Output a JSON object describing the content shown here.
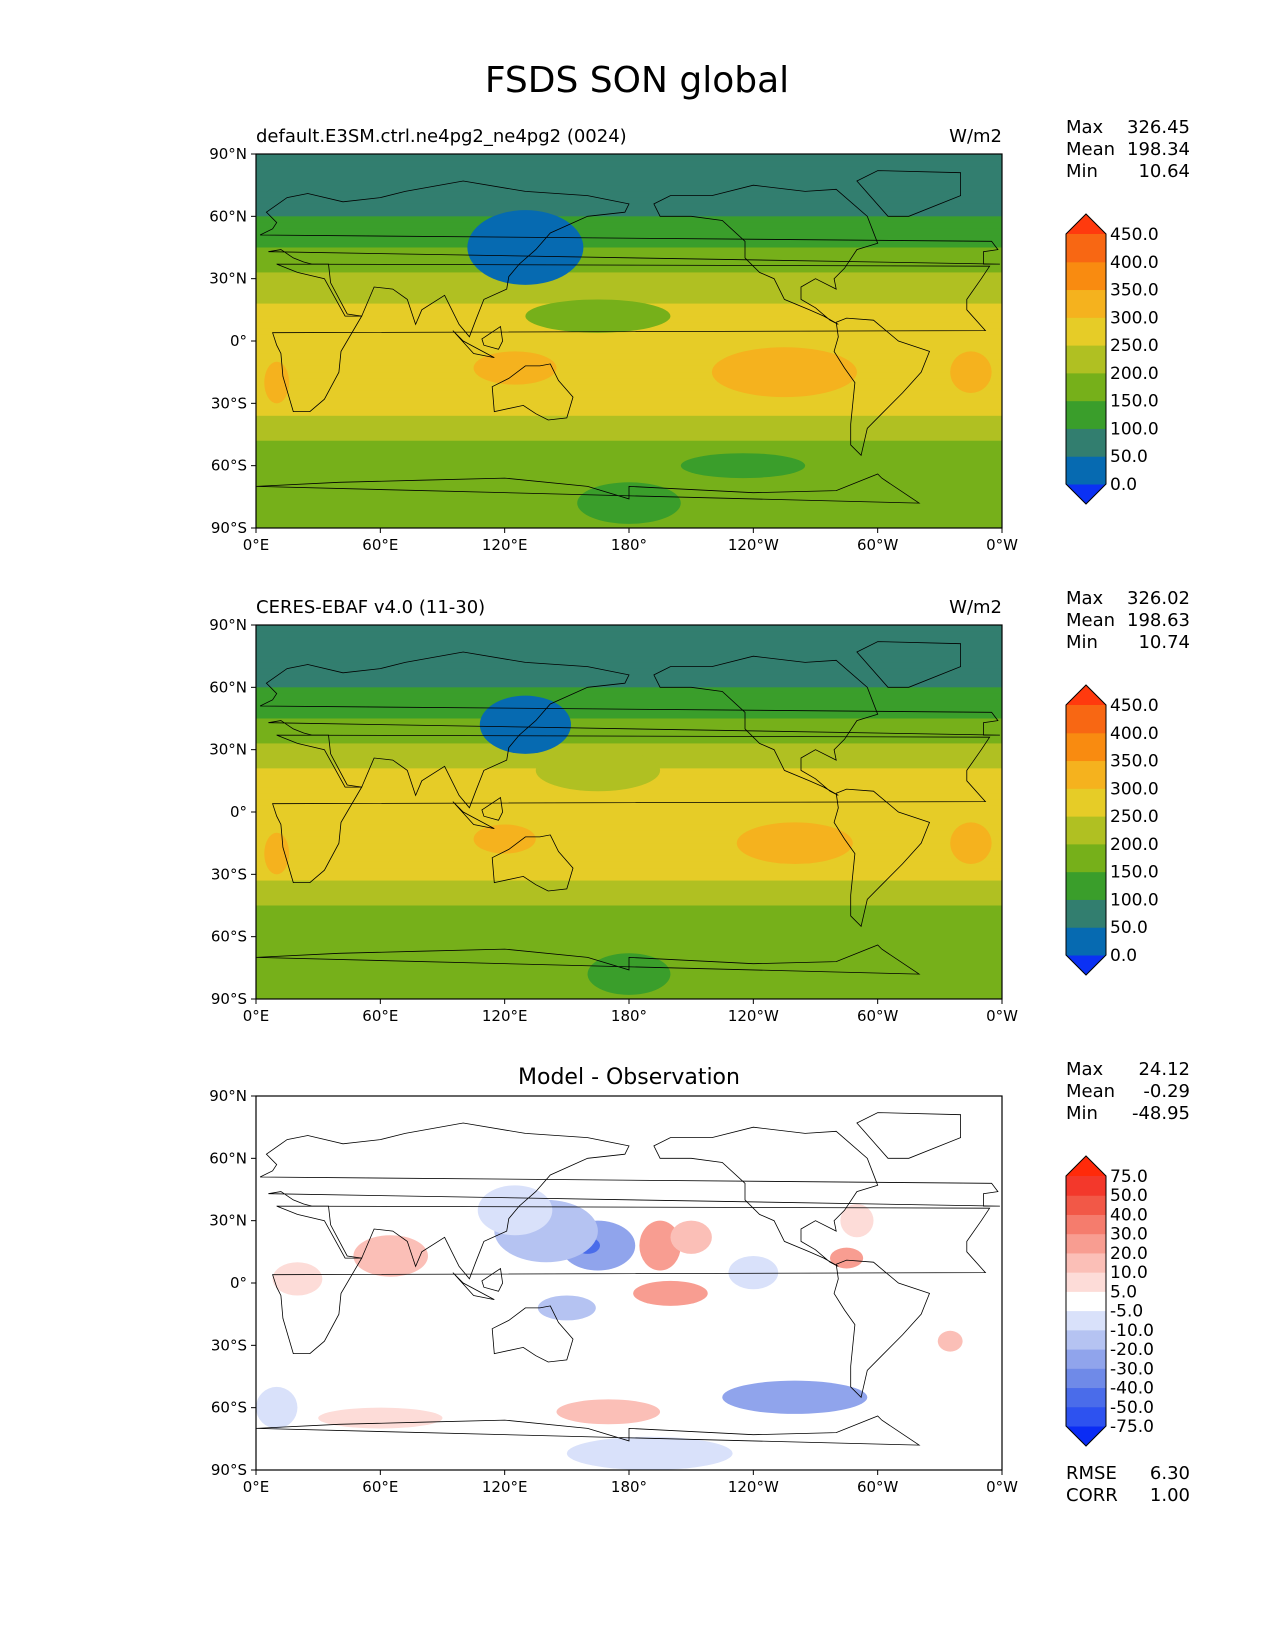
{
  "figure": {
    "title": "FSDS SON global"
  },
  "axes": {
    "lat_ticks": [
      "90°N",
      "60°N",
      "30°N",
      "0°",
      "30°S",
      "60°S",
      "90°S"
    ],
    "lon_ticks": [
      "0°E",
      "60°E",
      "120°E",
      "180°",
      "120°W",
      "60°W",
      "0°W"
    ]
  },
  "chart_data": [
    {
      "type": "heatmap",
      "title": "",
      "left_label": "default.E3SM.ctrl.ne4pg2_ne4pg2 (0024)",
      "right_label": "W/m2",
      "stats": [
        {
          "label": "Max",
          "value": "326.45"
        },
        {
          "label": "Mean",
          "value": "198.34"
        },
        {
          "label": "Min",
          "value": "10.64"
        }
      ],
      "levels": [
        "0.0",
        "50.0",
        "100.0",
        "150.0",
        "200.0",
        "250.0",
        "300.0",
        "350.0",
        "400.0",
        "450.0"
      ],
      "colors": [
        "#0b31f4",
        "#066ab1",
        "#327e6f",
        "#3a9e2b",
        "#76b01a",
        "#b0c022",
        "#e6cc27",
        "#f5b21e",
        "#f98b10",
        "#f86713",
        "#ff3a0e"
      ],
      "lat_bands": [
        {
          "lat": 90,
          "value": 55
        },
        {
          "lat": 60,
          "value": 95
        },
        {
          "lat": 45,
          "value": 150
        },
        {
          "lat": 30,
          "value": 210
        },
        {
          "lat": 15,
          "value": 265
        },
        {
          "lat": 0,
          "value": 275
        },
        {
          "lat": -20,
          "value": 285
        },
        {
          "lat": -35,
          "value": 250
        },
        {
          "lat": -45,
          "value": 205
        },
        {
          "lat": -60,
          "value": 180
        },
        {
          "lat": -75,
          "value": 175
        },
        {
          "lat": -90,
          "value": 160
        }
      ],
      "anomalies": [
        {
          "lon": 130,
          "lat": 45,
          "rx": 28,
          "ry": 18,
          "value": -110
        },
        {
          "lon": 165,
          "lat": 12,
          "rx": 35,
          "ry": 8,
          "value": -70
        },
        {
          "lon": -105,
          "lat": -15,
          "rx": 35,
          "ry": 12,
          "value": 55
        },
        {
          "lon": 125,
          "lat": -13,
          "rx": 20,
          "ry": 8,
          "value": 55
        },
        {
          "lon": 10,
          "lat": -20,
          "rx": 6,
          "ry": 10,
          "value": 55
        },
        {
          "lon": -15,
          "lat": -15,
          "rx": 10,
          "ry": 10,
          "value": 50
        },
        {
          "lon": 180,
          "lat": -78,
          "rx": 25,
          "ry": 10,
          "value": -30
        },
        {
          "lon": -125,
          "lat": -60,
          "rx": 30,
          "ry": 6,
          "value": -35
        }
      ],
      "caps": [
        "#0b31f4",
        "#ff3a0e"
      ]
    },
    {
      "type": "heatmap",
      "title": "",
      "left_label": "CERES-EBAF v4.0 (11-30)",
      "right_label": "W/m2",
      "stats": [
        {
          "label": "Max",
          "value": "326.02"
        },
        {
          "label": "Mean",
          "value": "198.63"
        },
        {
          "label": "Min",
          "value": "10.74"
        }
      ],
      "levels": [
        "0.0",
        "50.0",
        "100.0",
        "150.0",
        "200.0",
        "250.0",
        "300.0",
        "350.0",
        "400.0",
        "450.0"
      ],
      "colors": [
        "#0b31f4",
        "#066ab1",
        "#327e6f",
        "#3a9e2b",
        "#76b01a",
        "#b0c022",
        "#e6cc27",
        "#f5b21e",
        "#f98b10",
        "#f86713",
        "#ff3a0e"
      ],
      "lat_bands": [
        {
          "lat": 90,
          "value": 55
        },
        {
          "lat": 60,
          "value": 95
        },
        {
          "lat": 45,
          "value": 150
        },
        {
          "lat": 30,
          "value": 220
        },
        {
          "lat": 15,
          "value": 265
        },
        {
          "lat": 0,
          "value": 270
        },
        {
          "lat": -20,
          "value": 280
        },
        {
          "lat": -35,
          "value": 245
        },
        {
          "lat": -45,
          "value": 200
        },
        {
          "lat": -60,
          "value": 180
        },
        {
          "lat": -75,
          "value": 170
        },
        {
          "lat": -90,
          "value": 160
        }
      ],
      "anomalies": [
        {
          "lon": 130,
          "lat": 42,
          "rx": 22,
          "ry": 14,
          "value": -115
        },
        {
          "lon": 165,
          "lat": 20,
          "rx": 30,
          "ry": 10,
          "value": -50
        },
        {
          "lon": -100,
          "lat": -15,
          "rx": 28,
          "ry": 10,
          "value": 40
        },
        {
          "lon": 120,
          "lat": -13,
          "rx": 15,
          "ry": 7,
          "value": 50
        },
        {
          "lon": 10,
          "lat": -20,
          "rx": 6,
          "ry": 10,
          "value": 55
        },
        {
          "lon": -15,
          "lat": -15,
          "rx": 10,
          "ry": 10,
          "value": 45
        },
        {
          "lon": 180,
          "lat": -78,
          "rx": 20,
          "ry": 10,
          "value": -40
        }
      ],
      "caps": [
        "#0b31f4",
        "#ff3a0e"
      ]
    },
    {
      "type": "heatmap",
      "title": "Model - Observation",
      "left_label": "",
      "right_label": "",
      "stats": [
        {
          "label": "Max",
          "value": "24.12"
        },
        {
          "label": "Mean",
          "value": "-0.29"
        },
        {
          "label": "Min",
          "value": "-48.95"
        }
      ],
      "levels": [
        "-75.0",
        "-50.0",
        "-40.0",
        "-30.0",
        "-20.0",
        "-10.0",
        "-5.0",
        "5.0",
        "10.0",
        "20.0",
        "30.0",
        "40.0",
        "50.0",
        "75.0"
      ],
      "colors": [
        "#0a2cf5",
        "#2d52f0",
        "#4a6cea",
        "#6f8ae8",
        "#90a4ec",
        "#b5c3f2",
        "#d9e1fa",
        "#ffffff",
        "#fddcd8",
        "#fbbfb7",
        "#f89d91",
        "#f57c6d",
        "#f25847",
        "#f3382b",
        "#ff2a0a"
      ],
      "lat_bands": [
        {
          "lat": 90,
          "value": 0
        },
        {
          "lat": -90,
          "value": 0
        }
      ],
      "anomalies": [
        {
          "lon": 165,
          "lat": 18,
          "rx": 18,
          "ry": 12,
          "value": -30
        },
        {
          "lon": 160,
          "lat": 18,
          "rx": 6,
          "ry": 4,
          "value": -45
        },
        {
          "lon": 140,
          "lat": 25,
          "rx": 25,
          "ry": 15,
          "value": -12
        },
        {
          "lon": 125,
          "lat": 35,
          "rx": 18,
          "ry": 12,
          "value": -7
        },
        {
          "lon": 150,
          "lat": -12,
          "rx": 14,
          "ry": 6,
          "value": -14
        },
        {
          "lon": 195,
          "lat": 18,
          "rx": 10,
          "ry": 12,
          "value": 22
        },
        {
          "lon": 210,
          "lat": 22,
          "rx": 10,
          "ry": 8,
          "value": 12
        },
        {
          "lon": 200,
          "lat": -5,
          "rx": 18,
          "ry": 6,
          "value": 22
        },
        {
          "lon": 65,
          "lat": 13,
          "rx": 18,
          "ry": 10,
          "value": 12
        },
        {
          "lon": 20,
          "lat": 2,
          "rx": 12,
          "ry": 8,
          "value": 7
        },
        {
          "lon": 285,
          "lat": 12,
          "rx": 8,
          "ry": 5,
          "value": 22
        },
        {
          "lon": 290,
          "lat": 30,
          "rx": 8,
          "ry": 8,
          "value": 7
        },
        {
          "lon": 335,
          "lat": -28,
          "rx": 6,
          "ry": 5,
          "value": 12
        },
        {
          "lon": 260,
          "lat": -55,
          "rx": 35,
          "ry": 8,
          "value": -22
        },
        {
          "lon": 170,
          "lat": -62,
          "rx": 25,
          "ry": 6,
          "value": 12
        },
        {
          "lon": 60,
          "lat": -65,
          "rx": 30,
          "ry": 5,
          "value": 7
        },
        {
          "lon": 190,
          "lat": -82,
          "rx": 40,
          "ry": 8,
          "value": -7
        },
        {
          "lon": 10,
          "lat": -60,
          "rx": 10,
          "ry": 10,
          "value": -7
        },
        {
          "lon": 240,
          "lat": 5,
          "rx": 12,
          "ry": 8,
          "value": -7
        }
      ],
      "caps": [
        "#0a2cf5",
        "#ff2a0a"
      ],
      "extra_stats": [
        {
          "label": "RMSE",
          "value": "6.30"
        },
        {
          "label": "CORR",
          "value": "1.00"
        }
      ]
    }
  ]
}
